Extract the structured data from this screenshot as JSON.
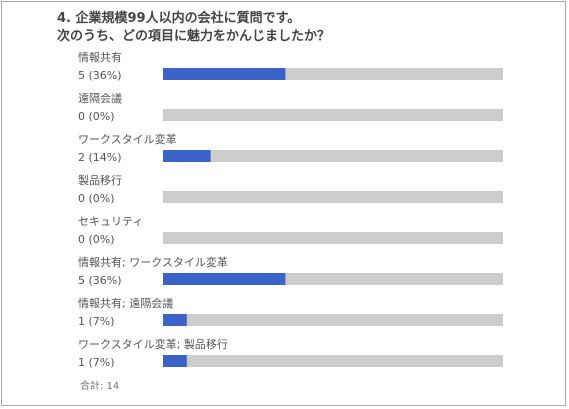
{
  "title_line1": "4. 企業規模99人以内の会社に質問です。",
  "title_line2": "次のうち、どの項目に魅力をかんじましたか？",
  "total_label": "合計: 14",
  "colors": {
    "bar": "#3a64c8",
    "track": "#cccccc",
    "text": "#555555"
  },
  "chart_data": {
    "type": "bar",
    "orientation": "horizontal",
    "total": 14,
    "xlim": [
      0,
      100
    ],
    "grid": false,
    "categories": [
      "情報共有",
      "遠隔会議",
      "ワークスタイル変革",
      "製品移行",
      "セキュリティ",
      "情報共有; ワークスタイル変革",
      "情報共有; 遠隔会議",
      "ワークスタイル変革; 製品移行"
    ],
    "values": [
      36,
      0,
      14,
      0,
      0,
      36,
      7,
      7
    ],
    "value_labels": [
      "5 (36%)",
      "0 (0%)",
      "2 (14%)",
      "0 (0%)",
      "0 (0%)",
      "5 (36%)",
      "1 (7%)",
      "1 (7%)"
    ]
  }
}
